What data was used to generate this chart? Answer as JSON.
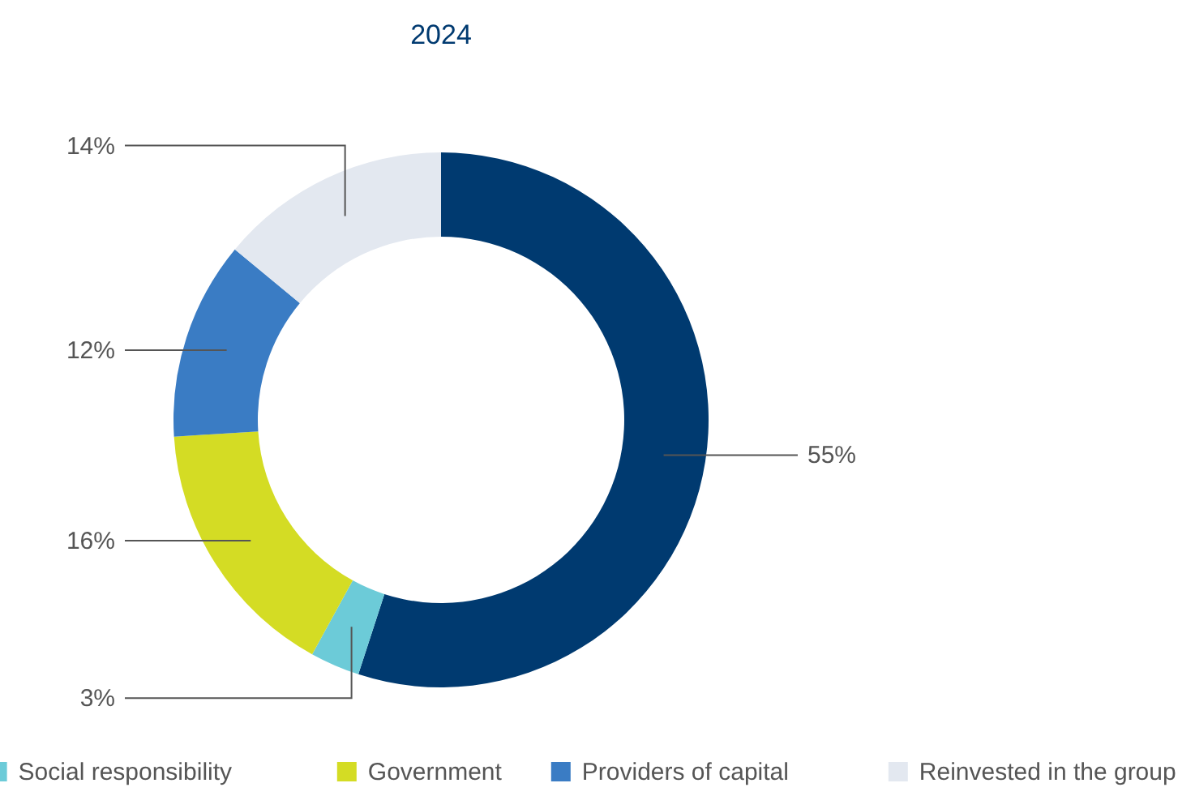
{
  "chart_data": {
    "type": "donut",
    "title": "2024",
    "categories": [
      null,
      "Social responsibility",
      "Government",
      "Providers of capital",
      "Reinvested in the group"
    ],
    "values": [
      55,
      3,
      16,
      12,
      14
    ],
    "colors": [
      "#003a70",
      "#6ccbd8",
      "#d4dc24",
      "#3a7cc4",
      "#e3e8f0"
    ],
    "value_labels": [
      "55%",
      "3%",
      "16%",
      "12%",
      "14%"
    ],
    "legend": "bottom"
  }
}
